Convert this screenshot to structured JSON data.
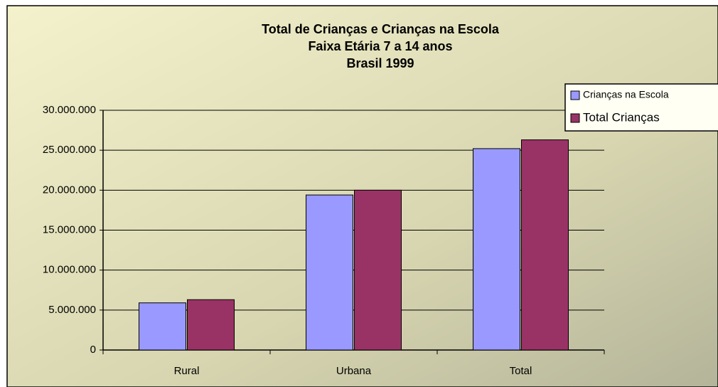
{
  "chart_data": {
    "type": "bar",
    "title": [
      "Total de Crianças e  Crianças na Escola",
      "Faixa Etária 7 a 14 anos",
      "Brasil 1999"
    ],
    "categories": [
      "Rural",
      "Urbana",
      "Total"
    ],
    "series": [
      {
        "name": "Crianças na Escola",
        "color": "#9999ff",
        "values": [
          5900000,
          19400000,
          25200000
        ]
      },
      {
        "name": "Total Crianças",
        "color": "#993366",
        "values": [
          6300000,
          20000000,
          26300000
        ]
      }
    ],
    "ylim": [
      0,
      30000000
    ],
    "yticks": [
      0,
      {
        "value": 5000000,
        "label": "5.000.000"
      },
      {
        "value": 10000000,
        "label": "10.000.000"
      },
      {
        "value": 15000000,
        "label": "15.000.000"
      },
      {
        "value": 20000000,
        "label": "20.000.000"
      },
      {
        "value": 25000000,
        "label": "25.000.000"
      },
      {
        "value": 30000000,
        "label": "30.000.000"
      }
    ],
    "grid": true,
    "legend": "top-right"
  }
}
